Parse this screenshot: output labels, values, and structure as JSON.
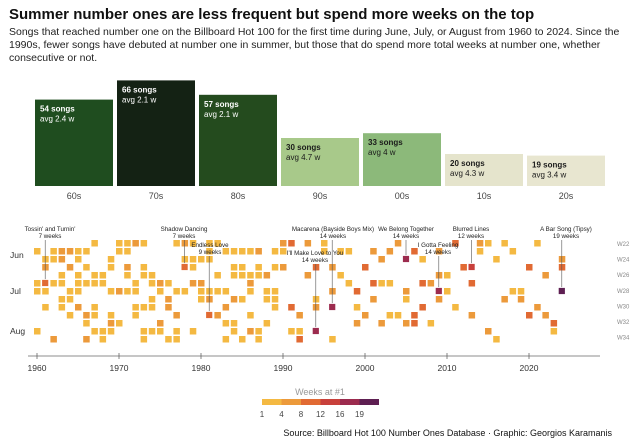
{
  "title": "Summer number ones are less frequent but spend more weeks on the top",
  "subtitle": "Songs that reached number one on the Billboard Hot 100 for the first time during June, July, or August from 1960 to 2024. Since the 1990s, fewer songs have debuted at number one in summer, but those that do spend more total weeks at number one, whether consecutive or not.",
  "source": "Source: Billboard Hot 100 Number Ones Database · Graphic: Georgios Karamanis",
  "legend": {
    "title": "Weeks at #1",
    "ticks": [
      "1",
      "4",
      "8",
      "12",
      "16",
      "19"
    ],
    "colors": [
      "#f4b942",
      "#ec9a3b",
      "#e16a33",
      "#c8403b",
      "#9c2b4e",
      "#5e1f52"
    ]
  },
  "chart_data": [
    {
      "type": "bar",
      "categories": [
        "60s",
        "70s",
        "80s",
        "90s",
        "00s",
        "10s",
        "20s"
      ],
      "values": [
        54,
        66,
        57,
        30,
        33,
        20,
        19
      ],
      "value_labels": [
        "54 songs",
        "66 songs",
        "57 songs",
        "30 songs",
        "33 songs",
        "20 songs",
        "19 songs"
      ],
      "avg_labels": [
        "avg 2.4 w",
        "avg 2.1 w",
        "avg 2.1 w",
        "avg 4.7 w",
        "avg 4 w",
        "avg 4.3 w",
        "avg 3.4 w"
      ],
      "avg_weeks": [
        2.4,
        2.1,
        2.1,
        4.7,
        4.0,
        4.3,
        3.4
      ],
      "bar_colors": [
        "#1f4d1f",
        "#142214",
        "#244b1e",
        "#a8c98a",
        "#8cb97a",
        "#e5e4cc",
        "#e8e6d0"
      ],
      "text_colors": [
        "#ffffff",
        "#ffffff",
        "#ffffff",
        "#1a1a1a",
        "#1a1a1a",
        "#1a1a1a",
        "#1a1a1a"
      ],
      "ylim": [
        0,
        70
      ]
    },
    {
      "type": "scatter",
      "xlim": [
        1959,
        2025
      ],
      "x_ticks": [
        "1960",
        "1970",
        "1980",
        "1990",
        "2000",
        "2010",
        "2020"
      ],
      "month_labels": [
        "Jun",
        "Jul",
        "Aug"
      ],
      "week_ticks": [
        "W22",
        "W24",
        "W26",
        "W28",
        "W30",
        "W32",
        "W34"
      ],
      "week_range": [
        22,
        35
      ],
      "annotations": [
        {
          "song": "Tossin' and Turnin'",
          "weeks_label": "7 weeks",
          "year": 1961,
          "week": 27,
          "weeks": 7
        },
        {
          "song": "Shadow Dancing",
          "weeks_label": "7 weeks",
          "year": 1978,
          "week": 25,
          "weeks": 7
        },
        {
          "song": "Endless Love",
          "weeks_label": "9 weeks",
          "year": 1981,
          "week": 31,
          "weeks": 9
        },
        {
          "song": "Macarena (Bayside Boys Mix)",
          "weeks_label": "14 weeks",
          "year": 1996,
          "week": 30,
          "weeks": 14
        },
        {
          "song": "I'll Make Love to You",
          "weeks_label": "14 weeks",
          "year": 1994,
          "week": 33,
          "weeks": 14
        },
        {
          "song": "We Belong Together",
          "weeks_label": "14 weeks",
          "year": 2005,
          "week": 24,
          "weeks": 14
        },
        {
          "song": "I Gotta Feeling",
          "weeks_label": "14 weeks",
          "year": 2009,
          "week": 28,
          "weeks": 14
        },
        {
          "song": "Blurred Lines",
          "weeks_label": "12 weeks",
          "year": 2013,
          "week": 25,
          "weeks": 12
        },
        {
          "song": "A Bar Song (Tipsy)",
          "weeks_label": "19 weeks",
          "year": 2024,
          "week": 28,
          "weeks": 19
        }
      ]
    }
  ]
}
